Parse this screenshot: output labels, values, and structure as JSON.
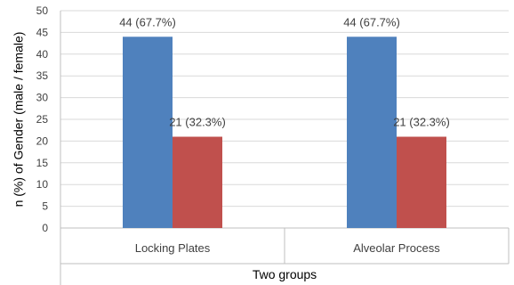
{
  "chart_data": {
    "type": "bar",
    "categories": [
      "Locking Plates",
      "Alveolar Process"
    ],
    "series": [
      {
        "values": [
          44,
          44
        ],
        "labels": [
          "44 (67.7%)",
          "44 (67.7%)"
        ],
        "color": "#4f81bd"
      },
      {
        "values": [
          21,
          21
        ],
        "labels": [
          "21 (32.3%)",
          "21 (32.3%)"
        ],
        "color": "#c0504d"
      }
    ],
    "xlabel": "Two groups",
    "ylabel": "n (%) of Gender (male / female)",
    "ylim": [
      0,
      50
    ],
    "yticks": [
      0,
      5,
      10,
      15,
      20,
      25,
      30,
      35,
      40,
      45,
      50
    ],
    "grid": true,
    "legend": "none",
    "colors": {
      "grid": "#d9d9d9",
      "axis": "#bfbfbf"
    }
  }
}
